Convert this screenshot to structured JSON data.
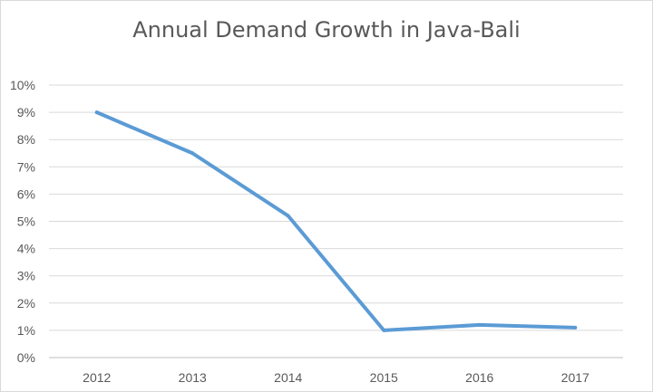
{
  "chart_data": {
    "type": "line",
    "title": "Annual Demand Growth in Java-Bali",
    "xlabel": "",
    "ylabel": "",
    "categories": [
      "2012",
      "2013",
      "2014",
      "2015",
      "2016",
      "2017"
    ],
    "series": [
      {
        "values": [
          9.0,
          7.5,
          5.2,
          1.0,
          1.2,
          1.1
        ]
      }
    ],
    "ylim": [
      0,
      10
    ],
    "y_ticks": [
      "0%",
      "1%",
      "2%",
      "3%",
      "4%",
      "5%",
      "6%",
      "7%",
      "8%",
      "9%",
      "10%"
    ],
    "grid": "horizontal",
    "legend": "none",
    "colors": {
      "line": "#5b9bd5",
      "grid": "#d9d9d9",
      "text": "#595959"
    }
  }
}
